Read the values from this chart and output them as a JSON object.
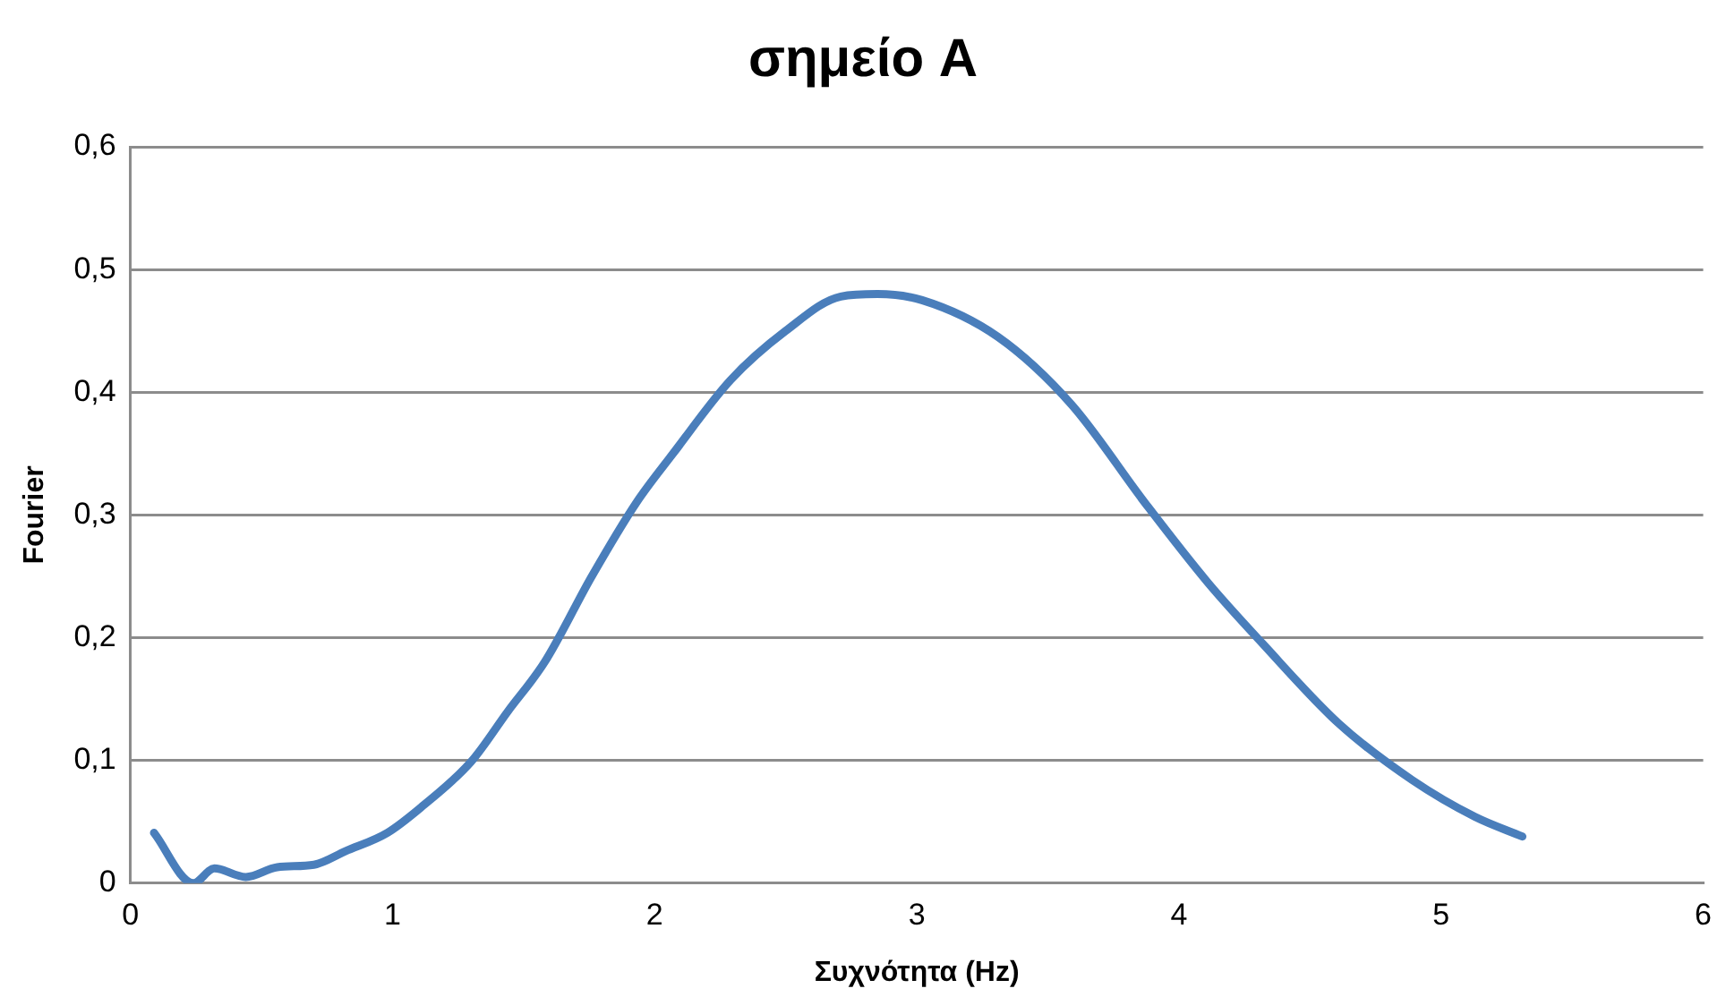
{
  "chart_data": {
    "type": "line",
    "title": "σημείο A",
    "xlabel": "Συχνότητα (Hz)",
    "ylabel": "Fourier",
    "xlim": [
      0,
      6
    ],
    "xticks": [
      0,
      1,
      2,
      3,
      4,
      5,
      6
    ],
    "ylim": [
      0,
      0.6
    ],
    "yticks": [
      {
        "value": 0,
        "label": "0"
      },
      {
        "value": 0.1,
        "label": "0,1"
      },
      {
        "value": 0.2,
        "label": "0,2"
      },
      {
        "value": 0.3,
        "label": "0,3"
      },
      {
        "value": 0.4,
        "label": "0,4"
      },
      {
        "value": 0.5,
        "label": "0,5"
      },
      {
        "value": 0.6,
        "label": "0,6"
      }
    ],
    "grid": "y",
    "legend": false,
    "marker": "none",
    "line_style": "solid",
    "series": [
      {
        "color": "#4a7ebb",
        "x": [
          0.09,
          0.24,
          0.32,
          0.44,
          0.56,
          0.7,
          0.82,
          0.98,
          1.11,
          1.3,
          1.44,
          1.58,
          1.76,
          1.93,
          2.07,
          2.29,
          2.5,
          2.71,
          2.85,
          3.02,
          3.31,
          3.59,
          3.87,
          4.11,
          4.32,
          4.61,
          4.89,
          5.13,
          5.31
        ],
        "values": [
          0.041,
          0,
          0.012,
          0.005,
          0.013,
          0.015,
          0.026,
          0.041,
          0.062,
          0.099,
          0.14,
          0.18,
          0.25,
          0.31,
          0.35,
          0.41,
          0.45,
          0.478,
          0.48,
          0.475,
          0.445,
          0.39,
          0.31,
          0.245,
          0.195,
          0.13,
          0.084,
          0.054,
          0.038
        ]
      }
    ]
  }
}
